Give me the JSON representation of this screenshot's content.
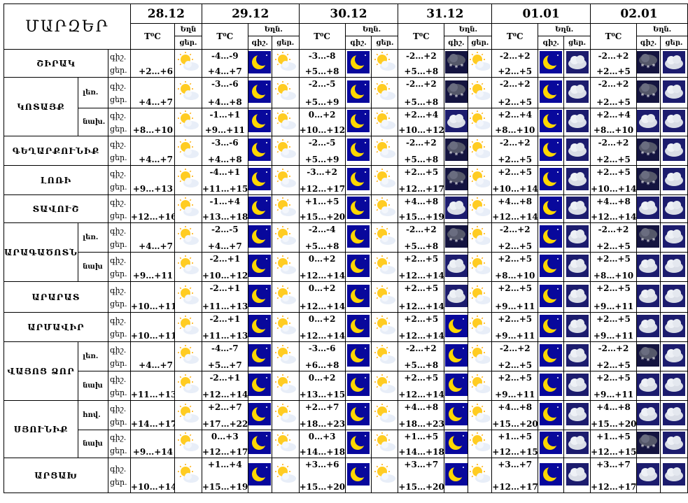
{
  "title": "ՄԱՐԶԵՐ",
  "dates": [
    "28.12",
    "29.12",
    "30.12",
    "31.12",
    "01.01",
    "02.01"
  ],
  "header": {
    "temp": "T⁰C",
    "weather": "Եղն.",
    "weather_short": "Եղն",
    "night": "գիշ.",
    "day": "ցեր."
  },
  "rows": [
    {
      "region": "ՇԻՐԱԿ",
      "sub": "",
      "d0": "+2…+6",
      "d": [
        [
          "-4…-9",
          "+4…+7"
        ],
        [
          "-3…-8",
          "+5…+8"
        ],
        [
          "-2…+2",
          "+5…+8"
        ],
        [
          "-2…+2",
          "+2…+5"
        ],
        [
          "-2…+2",
          "+2…+5"
        ]
      ],
      "icons": [
        [
          "sun-cloud"
        ],
        [
          "moon",
          "sun-cloud"
        ],
        [
          "moon",
          "sun-cloud"
        ],
        [
          "snow-cloud",
          "sun-cloud"
        ],
        [
          "moon",
          "cloud"
        ],
        [
          "snow-cloud",
          "cloud"
        ]
      ]
    },
    {
      "region": "ԿՈՏԱՅՔ",
      "sub": "լեռ.",
      "d0": "+4…+7",
      "d": [
        [
          "-3…-6",
          "+4…+8"
        ],
        [
          "-2…-5",
          "+5…+9"
        ],
        [
          "-2…+2",
          "+5…+8"
        ],
        [
          "-2…+2",
          "+2…+5"
        ],
        [
          "-2…+2",
          "+2…+5"
        ]
      ],
      "icons": [
        [
          "sun-cloud"
        ],
        [
          "moon",
          "sun-cloud"
        ],
        [
          "moon",
          "sun-cloud"
        ],
        [
          "snow-cloud",
          "sun-cloud"
        ],
        [
          "moon",
          "cloud"
        ],
        [
          "snow-cloud",
          "cloud"
        ]
      ]
    },
    {
      "region": "",
      "sub": "նախ.",
      "d0": "+8…+10",
      "d": [
        [
          "-1…+1",
          "+9…+11"
        ],
        [
          "0…+2",
          "+10…+12"
        ],
        [
          "+2…+4",
          "+10…+12"
        ],
        [
          "+2…+4",
          "+8…+10"
        ],
        [
          "+2…+4",
          "+8…+10"
        ]
      ],
      "icons": [
        [
          "sun-cloud"
        ],
        [
          "moon",
          "sun-cloud"
        ],
        [
          "moon",
          "sun-cloud"
        ],
        [
          "cloud",
          "sun-cloud"
        ],
        [
          "moon",
          "cloud"
        ],
        [
          "cloud",
          "cloud"
        ]
      ]
    },
    {
      "region": "ԳԵՂԱՐՔՈՒՆԻՔ",
      "sub": "",
      "d0": "+4…+7",
      "d": [
        [
          "-3…-6",
          "+4…+8"
        ],
        [
          "-2…-5",
          "+5…+9"
        ],
        [
          "-2…+2",
          "+5…+8"
        ],
        [
          "-2…+2",
          "+2…+5"
        ],
        [
          "-2…+2",
          "+2…+5"
        ]
      ],
      "icons": [
        [
          "sun-cloud"
        ],
        [
          "moon",
          "sun-cloud"
        ],
        [
          "moon",
          "sun-cloud"
        ],
        [
          "snow-cloud",
          "sun-cloud"
        ],
        [
          "moon",
          "cloud"
        ],
        [
          "snow-cloud",
          "cloud"
        ]
      ]
    },
    {
      "region": "ԼՈՌԻ",
      "sub": "",
      "d0": "+9…+13",
      "d": [
        [
          "-4…+1",
          "+11…+15"
        ],
        [
          "-3…+2",
          "+12…+17"
        ],
        [
          "+2…+5",
          "+12…+17"
        ],
        [
          "+2…+5",
          "+10…+14"
        ],
        [
          "+2…+5",
          "+10…+14"
        ]
      ],
      "icons": [
        [
          "sun-cloud"
        ],
        [
          "moon",
          "sun-cloud"
        ],
        [
          "moon",
          "sun-cloud"
        ],
        [
          "snow-cloud",
          "sun-cloud"
        ],
        [
          "moon",
          "cloud"
        ],
        [
          "snow-cloud",
          "cloud"
        ]
      ]
    },
    {
      "region": "ՏԱՎՈՒՇ",
      "sub": "",
      "d0": "+12…+16",
      "d": [
        [
          "-1…+4",
          "+13…+18"
        ],
        [
          "+1…+5",
          "+15…+20"
        ],
        [
          "+4…+8",
          "+15…+19"
        ],
        [
          "+4…+8",
          "+12…+14"
        ],
        [
          "+4…+8",
          "+12…+14"
        ]
      ],
      "icons": [
        [
          "sun-cloud"
        ],
        [
          "moon",
          "sun-cloud"
        ],
        [
          "moon",
          "sun-cloud"
        ],
        [
          "cloud",
          "sun-cloud"
        ],
        [
          "moon",
          "cloud"
        ],
        [
          "cloud",
          "cloud"
        ]
      ]
    },
    {
      "region": "ԱՐԱԳԱԾՈՏՆ",
      "sub": "լեռ.",
      "d0": "+4…+7",
      "d": [
        [
          "-2…-5",
          "+4…+7"
        ],
        [
          "-2…-4",
          "+5…+8"
        ],
        [
          "-2…+2",
          "+5…+8"
        ],
        [
          "-2…+2",
          "+2…+5"
        ],
        [
          "-2…+2",
          "+2…+5"
        ]
      ],
      "icons": [
        [
          "sun-cloud"
        ],
        [
          "moon",
          "sun-cloud"
        ],
        [
          "moon",
          "sun-cloud"
        ],
        [
          "snow-cloud",
          "sun-cloud"
        ],
        [
          "moon",
          "cloud"
        ],
        [
          "snow-cloud",
          "cloud"
        ]
      ]
    },
    {
      "region": "",
      "sub": "նախ",
      "d0": "+9…+11",
      "d": [
        [
          "-2…+1",
          "+10…+12"
        ],
        [
          "0…+2",
          "+12…+14"
        ],
        [
          "+2…+5",
          "+12…+14"
        ],
        [
          "+2…+5",
          "+8…+10"
        ],
        [
          "+2…+5",
          "+8…+10"
        ]
      ],
      "icons": [
        [
          "sun-cloud"
        ],
        [
          "moon",
          "sun-cloud"
        ],
        [
          "moon",
          "sun-cloud"
        ],
        [
          "cloud",
          "sun-cloud"
        ],
        [
          "moon",
          "cloud"
        ],
        [
          "cloud",
          "cloud"
        ]
      ]
    },
    {
      "region": "ԱՐԱՐԱՏ",
      "sub": "",
      "d0": "+10…+11",
      "d": [
        [
          "-2…+1",
          "+11…+13"
        ],
        [
          "0…+2",
          "+12…+14"
        ],
        [
          "+2…+5",
          "+12…+14"
        ],
        [
          "+2…+5",
          "+9…+11"
        ],
        [
          "+2…+5",
          "+9…+11"
        ]
      ],
      "icons": [
        [
          "sun-cloud"
        ],
        [
          "moon",
          "sun-cloud"
        ],
        [
          "moon",
          "sun-cloud"
        ],
        [
          "cloud",
          "sun-cloud"
        ],
        [
          "moon",
          "cloud"
        ],
        [
          "cloud",
          "cloud"
        ]
      ]
    },
    {
      "region": "ԱՐՄԱՎԻՐ",
      "sub": "",
      "d0": "+10…+11",
      "d": [
        [
          "-2…+1",
          "+11…+13"
        ],
        [
          "0…+2",
          "+12…+14"
        ],
        [
          "+2…+5",
          "+12…+14"
        ],
        [
          "+2…+5",
          "+9…+11"
        ],
        [
          "+2…+5",
          "+9…+11"
        ]
      ],
      "icons": [
        [
          "sun-cloud"
        ],
        [
          "moon",
          "sun-cloud"
        ],
        [
          "moon",
          "sun-cloud"
        ],
        [
          "moon",
          "sun-cloud"
        ],
        [
          "moon",
          "cloud"
        ],
        [
          "cloud",
          "cloud"
        ]
      ]
    },
    {
      "region": "ՎԱՅՈՑ ՁՈՐ",
      "sub": "լեռ.",
      "d0": "+4…+7",
      "d": [
        [
          "-4…-7",
          "+5…+7"
        ],
        [
          "-3…-6",
          "+6…+8"
        ],
        [
          "-2…+2",
          "+5…+8"
        ],
        [
          "-2…+2",
          "+2…+5"
        ],
        [
          "-2…+2",
          "+2…+5"
        ]
      ],
      "icons": [
        [
          "sun-cloud"
        ],
        [
          "moon",
          "sun-cloud"
        ],
        [
          "moon",
          "sun-cloud"
        ],
        [
          "moon",
          "sun-cloud"
        ],
        [
          "moon",
          "cloud"
        ],
        [
          "snow-cloud",
          "cloud"
        ]
      ]
    },
    {
      "region": "",
      "sub": "նախ",
      "d0": "+11…+13",
      "d": [
        [
          "-2…+1",
          "+12…+14"
        ],
        [
          "0…+2",
          "+13…+15"
        ],
        [
          "+2…+5",
          "+12…+14"
        ],
        [
          "+2…+5",
          "+9…+11"
        ],
        [
          "+2…+5",
          "+9…+11"
        ]
      ],
      "icons": [
        [
          "sun-cloud"
        ],
        [
          "moon",
          "sun-cloud"
        ],
        [
          "moon",
          "sun-cloud"
        ],
        [
          "moon",
          "sun-cloud"
        ],
        [
          "moon",
          "cloud"
        ],
        [
          "cloud",
          "cloud"
        ]
      ]
    },
    {
      "region": "ՍՅՈՒՆԻՔ",
      "sub": "հով.",
      "d0": "+14…+17",
      "d": [
        [
          "+2…+7",
          "+17…+22"
        ],
        [
          "+2…+7",
          "+18…+23"
        ],
        [
          "+4…+8",
          "+18…+23"
        ],
        [
          "+4…+8",
          "+15…+20"
        ],
        [
          "+4…+8",
          "+15…+20"
        ]
      ],
      "icons": [
        [
          "sun-cloud"
        ],
        [
          "moon",
          "sun-cloud"
        ],
        [
          "moon",
          "sun-cloud"
        ],
        [
          "moon",
          "sun-cloud"
        ],
        [
          "moon",
          "cloud"
        ],
        [
          "cloud",
          "cloud"
        ]
      ]
    },
    {
      "region": "",
      "sub": "նախ",
      "d0": "+9…+14",
      "d": [
        [
          "0…+3",
          "+12…+17"
        ],
        [
          "0…+3",
          "+14…+18"
        ],
        [
          "+1…+5",
          "+14…+18"
        ],
        [
          "+1…+5",
          "+12…+15"
        ],
        [
          "+1…+5",
          "+12…+15"
        ]
      ],
      "icons": [
        [
          "sun-cloud"
        ],
        [
          "moon",
          "sun-cloud"
        ],
        [
          "moon",
          "sun-cloud"
        ],
        [
          "moon",
          "sun-cloud"
        ],
        [
          "moon",
          "cloud"
        ],
        [
          "snow-cloud",
          "cloud"
        ]
      ]
    },
    {
      "region": "ԱՐՑԱԽ",
      "sub": "",
      "d0": "+10…+14",
      "d": [
        [
          "+1…+4",
          "+15…+19"
        ],
        [
          "+3…+6",
          "+15…+20"
        ],
        [
          "+3…+7",
          "+15…+20"
        ],
        [
          "+3…+7",
          "+12…+17"
        ],
        [
          "+3…+7",
          "+12…+17"
        ]
      ],
      "icons": [
        [
          "sun-cloud"
        ],
        [
          "moon",
          "sun-cloud"
        ],
        [
          "moon",
          "sun-cloud"
        ],
        [
          "moon",
          "sun-cloud"
        ],
        [
          "moon",
          "cloud"
        ],
        [
          "cloud",
          "cloud"
        ]
      ]
    }
  ]
}
